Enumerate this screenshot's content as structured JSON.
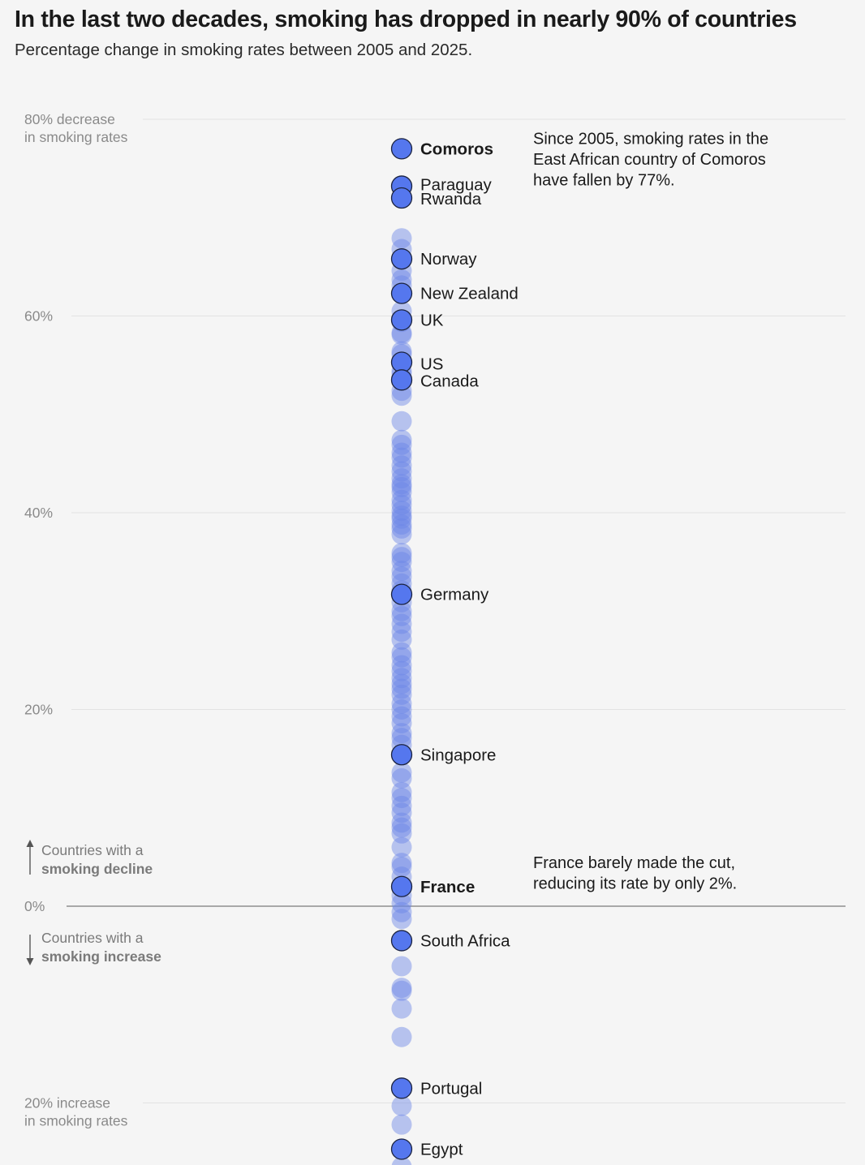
{
  "title": "In the last two decades, smoking has dropped in nearly 90% of countries",
  "subtitle": "Percentage change in smoking rates between 2005 and 2025.",
  "chart_data": {
    "type": "scatter",
    "axis": {
      "ylim": [
        -26,
        80
      ],
      "ticks": [
        {
          "value": 80,
          "lines": [
            "80% decrease",
            "in smoking rates"
          ]
        },
        {
          "value": 60,
          "lines": [
            "60%"
          ]
        },
        {
          "value": 40,
          "lines": [
            "40%"
          ]
        },
        {
          "value": 20,
          "lines": [
            "20%"
          ]
        },
        {
          "value": 0,
          "lines": [
            "0%"
          ]
        },
        {
          "value": -20,
          "lines": [
            "20% increase",
            "in smoking rates"
          ]
        }
      ]
    },
    "highlighted": [
      {
        "name": "Comoros",
        "value": 77,
        "bold": true
      },
      {
        "name": "Paraguay",
        "value": 73.2
      },
      {
        "name": "Rwanda",
        "value": 72
      },
      {
        "name": "Norway",
        "value": 65.8
      },
      {
        "name": "New Zealand",
        "value": 62.3
      },
      {
        "name": "UK",
        "value": 59.6
      },
      {
        "name": "US",
        "value": 55.3
      },
      {
        "name": "Canada",
        "value": 53.5
      },
      {
        "name": "Germany",
        "value": 31.7
      },
      {
        "name": "Singapore",
        "value": 15.4
      },
      {
        "name": "France",
        "value": 2,
        "bold": true
      },
      {
        "name": "South Africa",
        "value": -3.5
      },
      {
        "name": "Portugal",
        "value": -18.5
      },
      {
        "name": "Egypt",
        "value": -24.7
      }
    ],
    "others": [
      67.9,
      66.8,
      64.6,
      63.7,
      63.1,
      60.5,
      59.4,
      58.3,
      58.1,
      56.4,
      56.1,
      54.4,
      54.1,
      52.4,
      51.9,
      49.3,
      47.4,
      46.9,
      46.1,
      45.6,
      44.8,
      44.2,
      43.5,
      42.9,
      42.6,
      42.1,
      41.3,
      40.8,
      40.2,
      39.7,
      39.4,
      38.8,
      38.4,
      37.8,
      35.9,
      35.5,
      35.0,
      34.1,
      33.5,
      32.8,
      32.1,
      30.9,
      30.0,
      29.5,
      28.7,
      27.9,
      27.1,
      25.8,
      25.3,
      24.5,
      23.9,
      23.2,
      22.6,
      22.1,
      21.5,
      20.6,
      20.0,
      19.3,
      18.6,
      17.6,
      17.1,
      16.4,
      13.6,
      13.0,
      11.6,
      11.0,
      10.2,
      9.5,
      8.5,
      8.0,
      7.4,
      6.0,
      4.4,
      4.0,
      3.0,
      1.1,
      0.3,
      -0.6,
      -1.3,
      -6.1,
      -8.3,
      -8.6,
      -10.4,
      -13.3,
      -20.3,
      -22.2,
      -26.5
    ],
    "annotations": [
      {
        "lines": [
          "Since 2005, smoking rates in the",
          "East African country of Comoros",
          "have fallen by 77%."
        ],
        "anchor_value": 77
      },
      {
        "lines": [
          "France barely made the cut,",
          "reducing its rate by only 2%."
        ],
        "anchor_value": 2
      }
    ],
    "legend_notes": {
      "decline": {
        "line1": "Countries with a",
        "line2": "smoking decline"
      },
      "increase": {
        "line1": "Countries with a",
        "line2": "smoking increase"
      }
    },
    "colors": {
      "highlight": "#5577ee",
      "dot": "#6a86e6",
      "grid": "#e2e2e2",
      "zero": "#8f8f8f"
    }
  }
}
